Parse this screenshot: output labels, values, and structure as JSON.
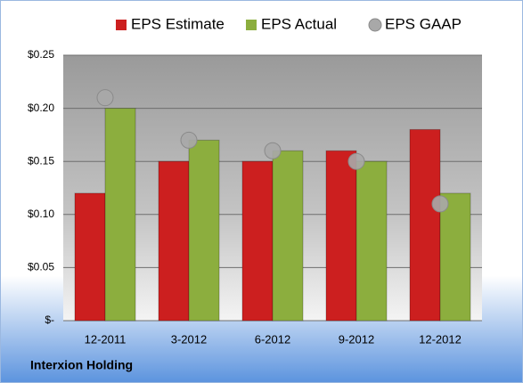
{
  "chart_data": {
    "type": "bar",
    "categories": [
      "12-2011",
      "3-2012",
      "6-2012",
      "9-2012",
      "12-2012"
    ],
    "series": [
      {
        "name": "EPS Estimate",
        "color": "#cc1f1f",
        "values": [
          0.12,
          0.15,
          0.15,
          0.16,
          0.18
        ]
      },
      {
        "name": "EPS Actual",
        "color": "#8cae3e",
        "values": [
          0.2,
          0.17,
          0.16,
          0.15,
          0.12
        ]
      },
      {
        "name": "EPS GAAP",
        "color": "#a8a8a8",
        "marker": "circle",
        "values": [
          0.21,
          0.17,
          0.16,
          0.15,
          0.11
        ]
      }
    ],
    "ylim": [
      0,
      0.25
    ],
    "yticks": [
      {
        "value": 0,
        "label": "$-"
      },
      {
        "value": 0.05,
        "label": "$0.05"
      },
      {
        "value": 0.1,
        "label": "$0.10"
      },
      {
        "value": 0.15,
        "label": "$0.15"
      },
      {
        "value": 0.2,
        "label": "$0.20"
      },
      {
        "value": 0.25,
        "label": "$0.25"
      }
    ],
    "grid": true,
    "legend": "top",
    "footer": "Interxion Holding"
  }
}
